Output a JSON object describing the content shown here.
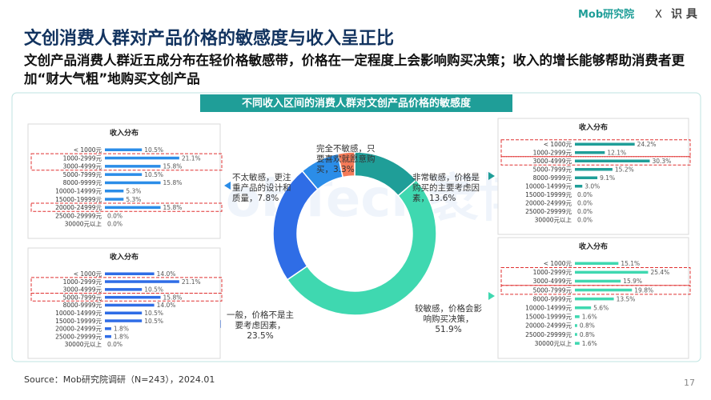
{
  "header": {
    "title": "文创消费人群对产品价格的敏感度与收入呈正比",
    "subtitle": "文创产品消费人群近五成分布在轻价格敏感带，价格在一定程度上会影响购买决策；收入的增长能够帮助消费者更加“财大气粗”地购买文创产品",
    "logo_left": "Mob研究院",
    "logo_sep": "X",
    "logo_right": "识 具"
  },
  "watermark": "MobTech袤博",
  "chart_data": [
    {
      "type": "donut",
      "title": "不同收入区间的消费人群对文创产品价格的敏感度",
      "categories": [
        "非常敏感，价格是购买的主要考虑因素，",
        "较敏感，价格会影响购买决策，",
        "一般，价格不是主要考虑因素，",
        "不太敏感，更注重产品的设计和质量，",
        "完全不敏感，只要喜欢就愿意购买，"
      ],
      "values": [
        13.6,
        51.9,
        23.5,
        7.8,
        3.3
      ],
      "value_labels": [
        "13.6%",
        "51.9%",
        "23.5%",
        "7.8%",
        "3.3%"
      ],
      "colors": [
        "#1f9e98",
        "#3fd8b0",
        "#2f6de6",
        "#2b8de8",
        "#f47a58"
      ]
    },
    {
      "type": "bar",
      "title": "收入分布",
      "categories": [
        "< 1000元",
        "1000-2999元",
        "3000-4999元",
        "5000-7999元",
        "8000-9999元",
        "10000-14999元",
        "15000-19999元",
        "20000-24999元",
        "25000-29999元",
        "30000元以上"
      ],
      "values": [
        10.5,
        21.1,
        15.8,
        10.5,
        15.8,
        5.3,
        5.3,
        15.8,
        0.0,
        0.0
      ],
      "value_labels": [
        "10.5%",
        "21.1%",
        "15.8%",
        "10.5%",
        "15.8%",
        "5.3%",
        "5.3%",
        "15.8%",
        "0.0%",
        "0.0%"
      ],
      "color": "#2b8de8",
      "xlim": [
        0,
        25
      ]
    },
    {
      "type": "bar",
      "title": "收入分布",
      "categories": [
        "< 1000元",
        "1000-2999元",
        "3000-4999元",
        "5000-7999元",
        "8000-9999元",
        "10000-14999元",
        "15000-19999元",
        "20000-24999元",
        "25000-29999元",
        "30000元以上"
      ],
      "values": [
        14.0,
        21.1,
        10.5,
        15.8,
        14.0,
        10.5,
        10.5,
        1.8,
        1.8,
        0.0
      ],
      "value_labels": [
        "14.0%",
        "21.1%",
        "10.5%",
        "15.8%",
        "14.0%",
        "10.5%",
        "10.5%",
        "1.8%",
        "1.8%",
        "0.0%"
      ],
      "color": "#2f6de6",
      "xlim": [
        0,
        25
      ]
    },
    {
      "type": "bar",
      "title": "收入分布",
      "categories": [
        "< 1000元",
        "1000-2999元",
        "3000-4999元",
        "5000-7999元",
        "8000-9999元",
        "10000-14999元",
        "15000-19999元",
        "20000-24999元",
        "25000-29999元",
        "30000元以上"
      ],
      "values": [
        24.2,
        12.1,
        30.3,
        15.2,
        9.1,
        3.0,
        0.0,
        0.0,
        0.0,
        0.0
      ],
      "value_labels": [
        "24.2%",
        "12.1%",
        "30.3%",
        "15.2%",
        "9.1%",
        "3.0%",
        "0.0%",
        "0.0%",
        "0.0%",
        "0.0%"
      ],
      "color": "#1f9e98",
      "xlim": [
        0,
        35
      ]
    },
    {
      "type": "bar",
      "title": "收入分布",
      "categories": [
        "< 1000元",
        "1000-2999元",
        "3000-4999元",
        "5000-7999元",
        "8000-9999元",
        "10000-14999元",
        "15000-19999元",
        "20000-24999元",
        "25000-29999元",
        "30000元以上"
      ],
      "values": [
        15.1,
        25.4,
        15.9,
        19.8,
        13.5,
        5.6,
        1.6,
        0.8,
        0.8,
        1.6
      ],
      "value_labels": [
        "15.1%",
        "25.4%",
        "15.9%",
        "19.8%",
        "13.5%",
        "5.6%",
        "1.6%",
        "0.8%",
        "0.8%",
        "1.6%"
      ],
      "color": "#3fd8b0",
      "xlim": [
        0,
        30
      ]
    }
  ],
  "source": "Source：Mob研究院调研（N=243），2024.01",
  "page_number": "17"
}
